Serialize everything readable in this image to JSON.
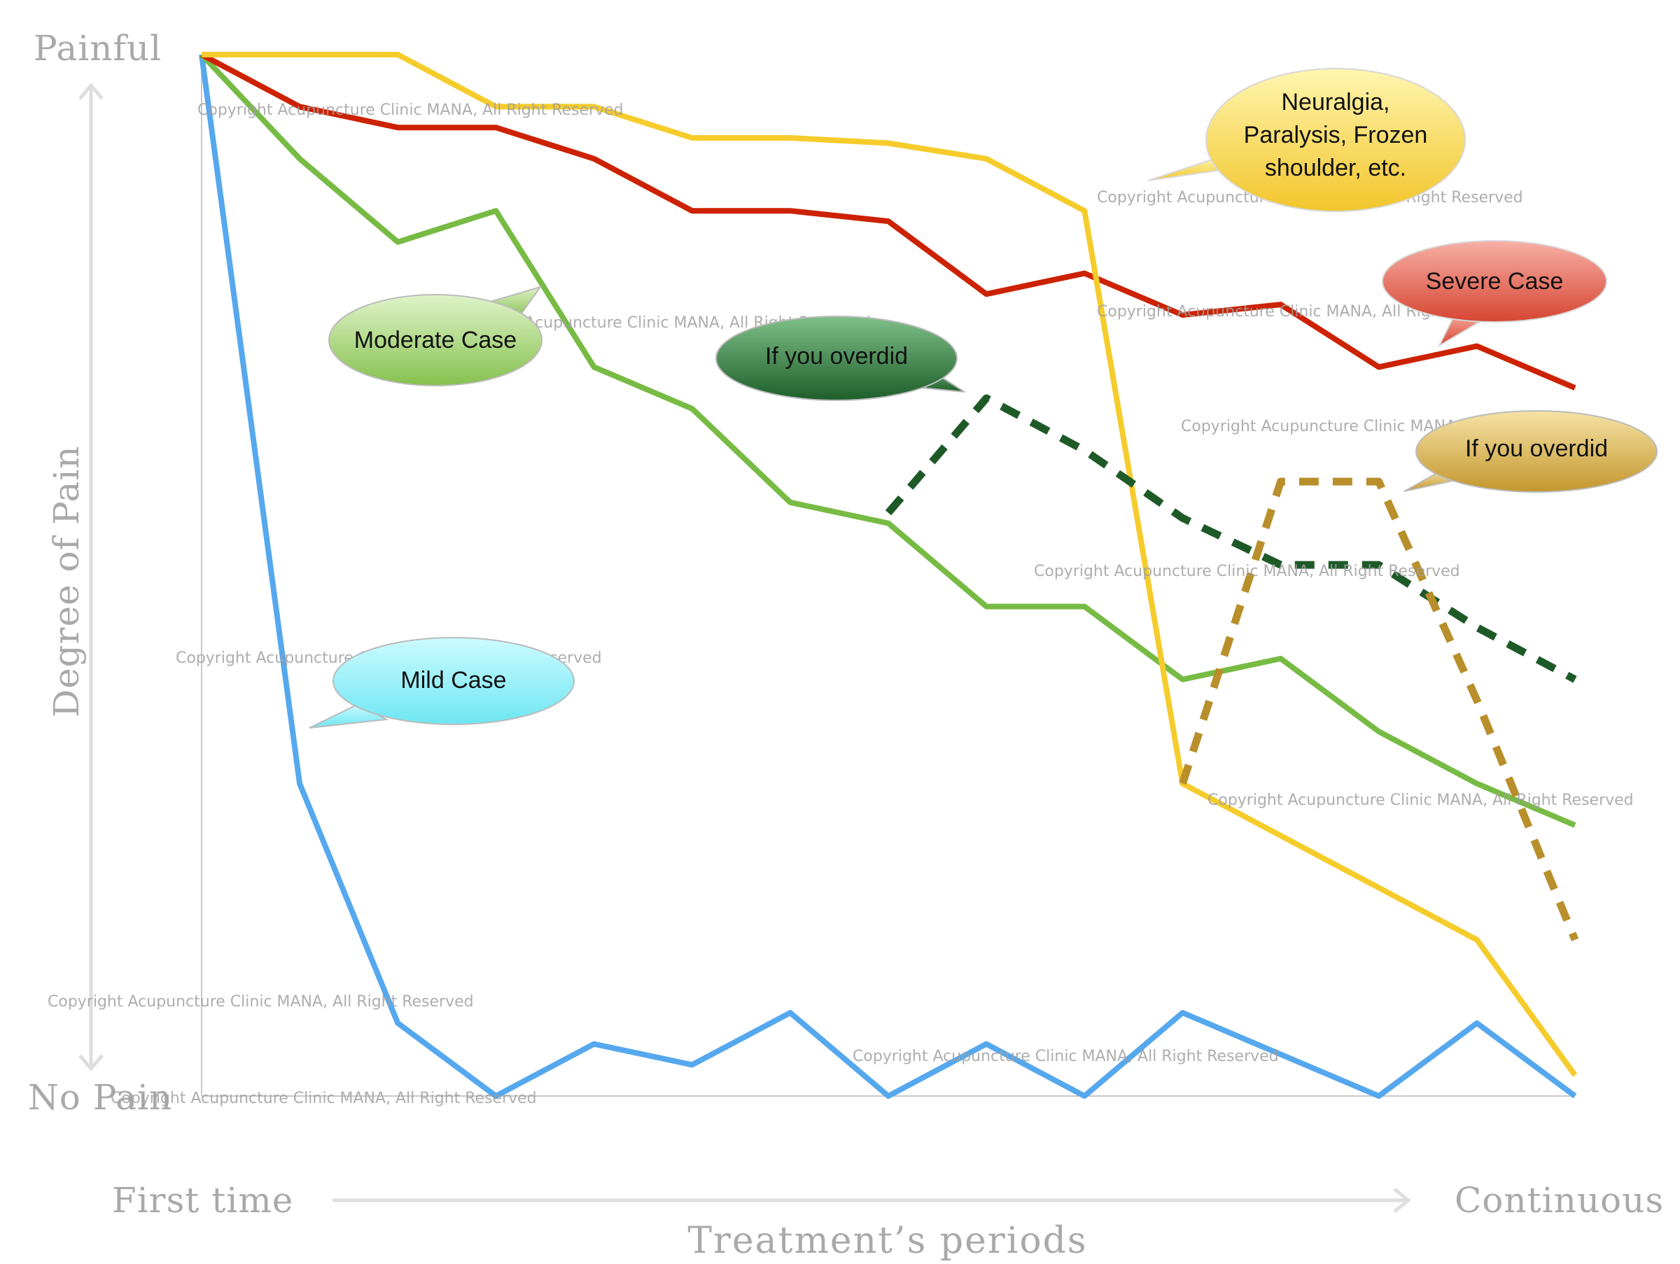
{
  "chart_data": {
    "type": "line",
    "xlabel": "Treatment’s periods",
    "ylabel": "Degree of Pain",
    "y_top_label": "Painful",
    "y_bottom_label": "No Pain",
    "x_start_label": "First time",
    "x_end_label": "Continuous",
    "x": [
      1,
      2,
      3,
      4,
      5,
      6,
      7,
      8,
      9,
      10,
      11,
      12,
      13,
      14,
      15
    ],
    "ylim": [
      0,
      100
    ],
    "grid": false,
    "series": [
      {
        "name": "Neuralgia, Paralysis, Frozen shoulder, etc.",
        "color": "#f5cc2b",
        "style": "solid",
        "values": [
          100,
          100,
          100,
          95,
          95,
          92,
          92,
          91.5,
          90,
          85,
          30,
          25,
          20,
          15,
          2
        ]
      },
      {
        "name": "Severe Case",
        "color": "#cc2200",
        "style": "solid",
        "values": [
          100,
          95,
          93,
          93,
          90,
          85,
          85,
          84,
          77,
          79,
          75,
          76,
          70,
          72,
          68
        ]
      },
      {
        "name": "Moderate Case",
        "color": "#77bb44",
        "style": "solid",
        "values": [
          100,
          90,
          82,
          85,
          70,
          66,
          57,
          55,
          47,
          47,
          40,
          42,
          35,
          30,
          26
        ]
      },
      {
        "name": "Mild Case",
        "color": "#55a8ee",
        "style": "solid",
        "values": [
          100,
          30,
          7,
          0,
          5,
          3,
          8,
          0,
          5,
          0,
          8,
          4,
          0,
          7,
          0
        ]
      },
      {
        "name": "If you overdid",
        "color": "#1e5a28",
        "style": "dashed",
        "x": [
          8,
          9,
          10,
          11,
          12,
          13,
          14,
          15
        ],
        "values": [
          56,
          67,
          62,
          55.5,
          51,
          51,
          45,
          40
        ]
      },
      {
        "name": "If you overdid",
        "color": "#b88f2b",
        "style": "dashed",
        "x": [
          11,
          12,
          13,
          14,
          15
        ],
        "values": [
          30,
          59,
          59,
          38,
          15
        ]
      }
    ],
    "callouts": [
      {
        "text_lines": [
          "Neuralgia,",
          "Paralysis, Frozen",
          "shoulder, etc."
        ],
        "fill": "#f5d23e"
      },
      {
        "text_lines": [
          "Severe Case"
        ],
        "fill": "#dd5b4c"
      },
      {
        "text_lines": [
          "Moderate Case"
        ],
        "fill": "#9ccf6a"
      },
      {
        "text_lines": [
          "If you overdid"
        ],
        "fill": "#2c7a3a"
      },
      {
        "text_lines": [
          "If you overdid"
        ],
        "fill": "#d1a73c"
      },
      {
        "text_lines": [
          "Mild Case"
        ],
        "fill": "#86e8f0"
      }
    ],
    "watermark": "Copyright Acupuncture Clinic MANA, All Right Reserved"
  }
}
